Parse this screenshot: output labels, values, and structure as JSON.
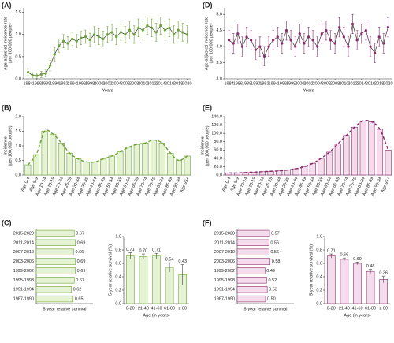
{
  "chart_data": [
    {
      "type": "line",
      "label": "(A)",
      "color": "#6aa431",
      "trend": "#333333",
      "ylabel": [
        "Age-adjusted incidence rate",
        "(per 100,000 people)"
      ],
      "xlabel": "Years",
      "x": [
        1984,
        1985,
        1986,
        1987,
        1988,
        1989,
        1990,
        1991,
        1992,
        1993,
        1994,
        1995,
        1996,
        1997,
        1998,
        1999,
        2000,
        2001,
        2002,
        2003,
        2004,
        2005,
        2006,
        2007,
        2008,
        2009,
        2010,
        2011,
        2012,
        2013,
        2014,
        2015,
        2016,
        2017,
        2018,
        2019,
        2020
      ],
      "values": [
        0.15,
        0.08,
        0.07,
        0.1,
        0.12,
        0.3,
        0.55,
        0.75,
        0.85,
        0.8,
        0.9,
        0.85,
        0.92,
        0.95,
        0.88,
        1.0,
        0.95,
        0.9,
        1.0,
        1.05,
        0.95,
        1.05,
        1.0,
        1.1,
        1.0,
        1.15,
        1.1,
        1.2,
        1.15,
        1.05,
        1.2,
        1.1,
        1.15,
        1.0,
        1.1,
        1.05,
        1.0
      ],
      "errors": [
        0.08,
        0.06,
        0.06,
        0.07,
        0.08,
        0.12,
        0.15,
        0.15,
        0.15,
        0.15,
        0.15,
        0.15,
        0.15,
        0.15,
        0.15,
        0.18,
        0.18,
        0.18,
        0.18,
        0.18,
        0.18,
        0.18,
        0.18,
        0.2,
        0.2,
        0.2,
        0.2,
        0.2,
        0.2,
        0.2,
        0.2,
        0.2,
        0.2,
        0.2,
        0.2,
        0.2,
        0.2
      ],
      "xlim": [
        1983,
        2021
      ],
      "xticks": [
        1984,
        1986,
        1988,
        1990,
        1992,
        1994,
        1996,
        1998,
        2000,
        2002,
        2004,
        2006,
        2008,
        2010,
        2012,
        2014,
        2016,
        2018,
        2020
      ],
      "ylim": [
        0,
        1.6
      ],
      "yticks": [
        {
          "value": 0,
          "label": "0.0"
        },
        0.5,
        {
          "value": 1,
          "label": "1.0"
        },
        1.5
      ]
    },
    {
      "type": "bar",
      "label": "(B)",
      "color": "#6aa431",
      "fill": "#e6f2d4",
      "ylabel": [
        "Incidence",
        "(per 100,000 people)"
      ],
      "categories": [
        "Age 0-4",
        "Age 5-9",
        "Age 10-14",
        "Age 15-19",
        "Age 20-24",
        "Age 25-29",
        "Age 30-34",
        "Age 35-39",
        "Age 40-44",
        "Age 45-49",
        "Age 50-54",
        "Age 55-59",
        "Age 60-64",
        "Age 65-69",
        "Age 70-74",
        "Age 75-79",
        "Age 80-84",
        "Age 85-89",
        "Age 90-94",
        "Age 95+"
      ],
      "values": [
        0.35,
        0.7,
        1.5,
        1.4,
        1.1,
        0.75,
        0.55,
        0.45,
        0.45,
        0.55,
        0.65,
        0.8,
        0.95,
        1.05,
        1.1,
        1.2,
        1.1,
        0.75,
        0.5,
        0.65
      ],
      "ylim": [
        0,
        2
      ],
      "yticks": [
        {
          "value": 0,
          "label": "0.0"
        },
        0.5,
        {
          "value": 1,
          "label": "1.0"
        },
        1.5,
        {
          "value": 2,
          "label": "2.0"
        }
      ]
    },
    {
      "type": "hbar",
      "label": "(C)",
      "color": "#6aa431",
      "fill": "#e6f2d4",
      "xlabel": "5-year relative survival",
      "categories": [
        "2015-2020",
        "2011-2014",
        "2007-2010",
        "2003-2006",
        "1999-2002",
        "1995-1998",
        "1991-1994",
        "1987-1990"
      ],
      "values": [
        0.67,
        0.69,
        0.66,
        0.69,
        0.69,
        0.67,
        0.62,
        0.65
      ],
      "xlim": [
        0,
        1
      ]
    },
    {
      "type": "bar",
      "color": "#6aa431",
      "fill": "#e6f2d4",
      "ylabel": [
        "5-year relative survival (%)"
      ],
      "xlabel": "Age (in years)",
      "categories": [
        "0-20",
        "21-40",
        "41-60",
        "61-80",
        "≥ 80"
      ],
      "values": [
        0.71,
        0.7,
        0.71,
        0.54,
        0.43
      ],
      "value_labels": [
        "0.71",
        "0.70",
        "0.71",
        "0.54",
        "0.43"
      ],
      "errors": [
        0.05,
        0.04,
        0.04,
        0.07,
        0.15
      ],
      "ylim": [
        0,
        1
      ],
      "yticks": [
        {
          "value": 0,
          "label": "0.0"
        },
        0.2,
        0.4,
        0.6,
        0.8,
        {
          "value": 1,
          "label": "1.0"
        }
      ]
    },
    {
      "type": "line",
      "label": "(D)",
      "color": "#8b2a6b",
      "trend": "#333333",
      "ylabel": [
        "Age-adjusted incidence rate",
        "(per 100,000 people)"
      ],
      "xlabel": "Years",
      "x": [
        1984,
        1985,
        1986,
        1987,
        1988,
        1989,
        1990,
        1991,
        1992,
        1993,
        1994,
        1995,
        1996,
        1997,
        1998,
        1999,
        2000,
        2001,
        2002,
        2003,
        2004,
        2005,
        2006,
        2007,
        2008,
        2009,
        2010,
        2011,
        2012,
        2013,
        2014,
        2015,
        2016,
        2017,
        2018,
        2019,
        2020
      ],
      "values": [
        4.2,
        4.1,
        4.4,
        4.0,
        4.3,
        4.2,
        3.9,
        4.0,
        3.7,
        4.0,
        4.2,
        4.3,
        4.1,
        4.5,
        4.2,
        4.0,
        4.4,
        4.1,
        4.3,
        4.2,
        4.0,
        4.4,
        4.5,
        4.2,
        4.1,
        4.6,
        4.3,
        4.0,
        4.7,
        4.2,
        4.4,
        4.5,
        4.0,
        3.8,
        4.3,
        4.1,
        4.6
      ],
      "errors": [
        0.3,
        0.3,
        0.3,
        0.3,
        0.3,
        0.3,
        0.3,
        0.3,
        0.3,
        0.3,
        0.3,
        0.3,
        0.3,
        0.3,
        0.3,
        0.3,
        0.3,
        0.3,
        0.3,
        0.3,
        0.3,
        0.3,
        0.3,
        0.3,
        0.3,
        0.3,
        0.3,
        0.3,
        0.3,
        0.3,
        0.3,
        0.3,
        0.3,
        0.3,
        0.3,
        0.3,
        0.3
      ],
      "xlim": [
        1983,
        2021
      ],
      "xticks": [
        1984,
        1986,
        1988,
        1990,
        1992,
        1994,
        1996,
        1998,
        2000,
        2002,
        2004,
        2006,
        2008,
        2010,
        2012,
        2014,
        2016,
        2018,
        2020
      ],
      "ylim": [
        3,
        5.2
      ],
      "yticks": [
        {
          "value": 3,
          "label": "3.0"
        },
        3.5,
        {
          "value": 4,
          "label": "4.0"
        },
        4.5,
        {
          "value": 5,
          "label": "5.0"
        }
      ]
    },
    {
      "type": "bar",
      "label": "(E)",
      "color": "#8b2a6b",
      "fill": "#f4dcec",
      "ylabel": [
        "Incidence",
        "(per 100,000 people)"
      ],
      "categories": [
        "Age 0-4",
        "Age 5-9",
        "Age 10-14",
        "Age 15-19",
        "Age 20-24",
        "Age 25-29",
        "Age 30-34",
        "Age 35-39",
        "Age 40-44",
        "Age 45-49",
        "Age 50-54",
        "Age 55-59",
        "Age 60-64",
        "Age 65-69",
        "Age 70-74",
        "Age 75-79",
        "Age 80-84",
        "Age 85-89",
        "Age 90-94",
        "Age 95+"
      ],
      "values": [
        5,
        5,
        6,
        7,
        8,
        9,
        10,
        12,
        15,
        20,
        28,
        40,
        55,
        75,
        95,
        115,
        130,
        128,
        110,
        60
      ],
      "ylim": [
        0,
        140
      ],
      "yticks": [
        {
          "value": 0,
          "label": "0.0"
        },
        {
          "value": 20,
          "label": "20.0"
        },
        {
          "value": 40,
          "label": "40.0"
        },
        {
          "value": 60,
          "label": "60.0"
        },
        {
          "value": 80,
          "label": "80.0"
        },
        {
          "value": 100,
          "label": "100.0"
        },
        {
          "value": 120,
          "label": "120.0"
        },
        {
          "value": 140,
          "label": "140.0"
        }
      ]
    },
    {
      "type": "hbar",
      "label": "(F)",
      "color": "#8b2a6b",
      "fill": "#f4dcec",
      "xlabel": "5-year relative survival",
      "categories": [
        "2015-2020",
        "2011-2014",
        "2007-2010",
        "2003-2006",
        "1999-2002",
        "1995-1998",
        "1991-1994",
        "1987-1990"
      ],
      "values": [
        0.57,
        0.56,
        0.56,
        0.58,
        0.49,
        0.52,
        0.53,
        0.5
      ],
      "value_labels": [
        "0.57",
        "0.56",
        "0.56",
        "0.58",
        "0.49",
        "0.52",
        "0.53",
        "0.50"
      ],
      "xlim": [
        0,
        1
      ]
    },
    {
      "type": "bar",
      "color": "#8b2a6b",
      "fill": "#f4dcec",
      "ylabel": [
        "5-year relative survival (%)"
      ],
      "xlabel": "Age (in years)",
      "categories": [
        "0-20",
        "21-40",
        "41-60",
        "61-80",
        "≥ 80"
      ],
      "values": [
        0.71,
        0.66,
        0.6,
        0.48,
        0.36
      ],
      "value_labels": [
        "0.71",
        "0.66",
        "0.60",
        "0.48",
        "0.36"
      ],
      "errors": [
        0.03,
        0.02,
        0.02,
        0.03,
        0.05
      ],
      "ylim": [
        0,
        1
      ],
      "yticks": [
        {
          "value": 0,
          "label": "0.0"
        },
        0.2,
        0.4,
        0.6,
        0.8,
        {
          "value": 1,
          "label": "1.0"
        }
      ]
    }
  ]
}
